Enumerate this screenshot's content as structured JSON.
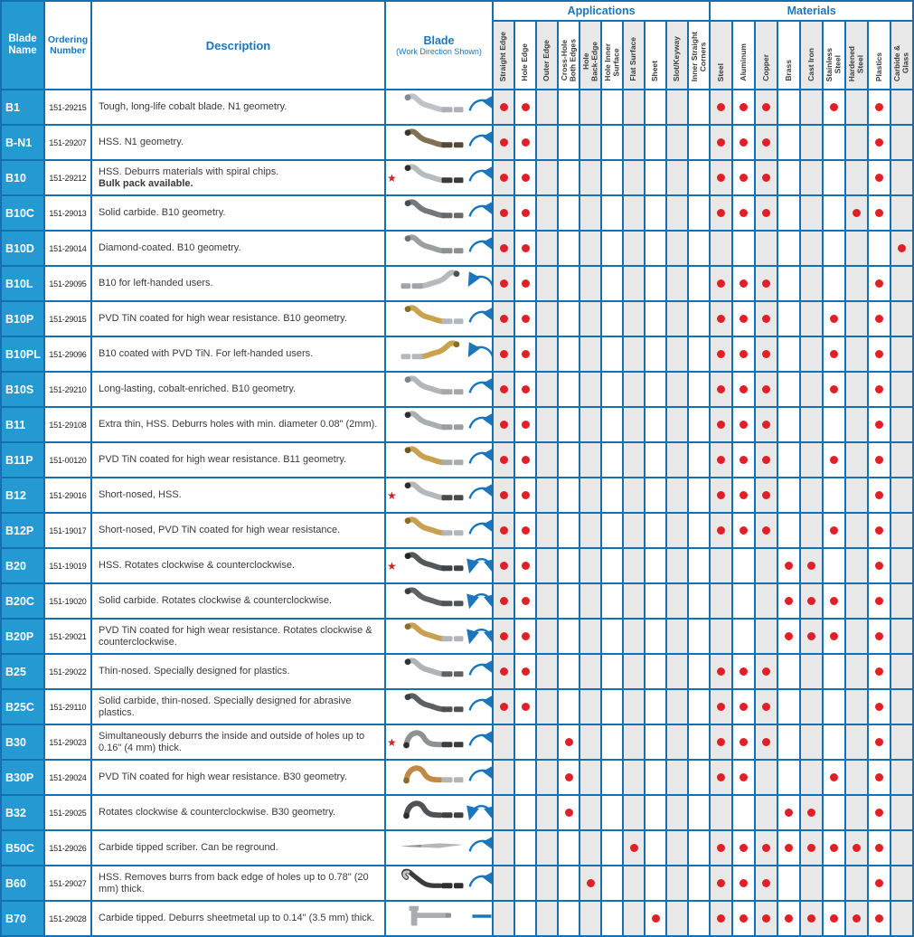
{
  "table": {
    "colors": {
      "accent_blue": "#1b76bb",
      "grid_blue": "#1470b2",
      "blade_name_cell_blue": "#2599d2",
      "dot_red": "#e01f26",
      "star_red": "#d42027",
      "shaded_column": "#e8e8e8"
    },
    "headers": {
      "blade_name": "Blade\nName",
      "ordering_number": "Ordering\nNumber",
      "description": "Description",
      "blade": "Blade",
      "blade_sub": "(Work Direction Shown)",
      "applications_group": "Applications",
      "materials_group": "Materials",
      "applications": [
        "Straight Edge",
        "Hole Edge",
        "Outer Edge",
        "Cross-Hole\nBoth Edges",
        "Hole\nBack-Edge",
        "Hole Inner\nSurface",
        "Flat Surface",
        "Sheet",
        "Slot/Keyway",
        "Inner Straight\nCorners"
      ],
      "materials": [
        "Steel",
        "Aluminum",
        "Copper",
        "Brass",
        "Cast Iron",
        "Stainless\nSteel",
        "Hardened\nSteel",
        "Plastics",
        "Carbide &\nGlass"
      ]
    },
    "rows": [
      {
        "name": "B1",
        "order": "151-29215",
        "desc": "Tough, long-life cobalt blade. N1 geometry.",
        "bold_note": "",
        "star": false,
        "arrow": "cw",
        "blade": {
          "shape": "s",
          "body": "#bfc3c7",
          "tip": "#86898d",
          "shank": "#adb1b5"
        },
        "apps": [
          1,
          1,
          0,
          0,
          0,
          0,
          0,
          0,
          0,
          0
        ],
        "mats": [
          1,
          1,
          1,
          0,
          0,
          1,
          0,
          1,
          0
        ]
      },
      {
        "name": "B-N1",
        "order": "151-29207",
        "desc": "HSS. N1 geometry.",
        "bold_note": "",
        "star": false,
        "arrow": "cw",
        "blade": {
          "shape": "s",
          "body": "#836f54",
          "tip": "#3c352b",
          "shank": "#55493a"
        },
        "apps": [
          1,
          1,
          0,
          0,
          0,
          0,
          0,
          0,
          0,
          0
        ],
        "mats": [
          1,
          1,
          1,
          0,
          0,
          0,
          0,
          1,
          0
        ]
      },
      {
        "name": "B10",
        "order": "151-29212",
        "desc": "HSS. Deburrs materials with spiral chips.",
        "bold_note": "Bulk pack available.",
        "star": true,
        "arrow": "cw",
        "blade": {
          "shape": "s",
          "body": "#b6bbbf",
          "tip": "#2c2c2c",
          "shank": "#3a3a3a"
        },
        "apps": [
          1,
          1,
          0,
          0,
          0,
          0,
          0,
          0,
          0,
          0
        ],
        "mats": [
          1,
          1,
          1,
          0,
          0,
          0,
          0,
          1,
          0
        ]
      },
      {
        "name": "B10C",
        "order": "151-29013",
        "desc": "Solid carbide. B10 geometry.",
        "bold_note": "",
        "star": false,
        "arrow": "cw",
        "blade": {
          "shape": "s",
          "body": "#74787b",
          "tip": "#4b4e51",
          "shank": "#67696c"
        },
        "apps": [
          1,
          1,
          0,
          0,
          0,
          0,
          0,
          0,
          0,
          0
        ],
        "mats": [
          1,
          1,
          1,
          0,
          0,
          0,
          1,
          1,
          0
        ]
      },
      {
        "name": "B10D",
        "order": "151-29014",
        "desc": "Diamond-coated. B10 geometry.",
        "bold_note": "",
        "star": false,
        "arrow": "cw",
        "blade": {
          "shape": "s",
          "body": "#9b9fa2",
          "tip": "#6e7173",
          "shank": "#8c9093"
        },
        "apps": [
          1,
          1,
          0,
          0,
          0,
          0,
          0,
          0,
          0,
          0
        ],
        "mats": [
          0,
          0,
          0,
          0,
          0,
          0,
          0,
          0,
          1
        ]
      },
      {
        "name": "B10L",
        "order": "151-29095",
        "desc": "B10 for left-handed users.",
        "bold_note": "",
        "star": false,
        "arrow": "ccw",
        "blade": {
          "shape": "s_l",
          "body": "#b6babd",
          "tip": "#4e5153",
          "shank": "#a0a4a7"
        },
        "apps": [
          1,
          1,
          0,
          0,
          0,
          0,
          0,
          0,
          0,
          0
        ],
        "mats": [
          1,
          1,
          1,
          0,
          0,
          0,
          0,
          1,
          0
        ]
      },
      {
        "name": "B10P",
        "order": "151-29015",
        "desc": "PVD TiN coated for high wear resistance. B10 geometry.",
        "bold_note": "",
        "star": false,
        "arrow": "cw",
        "blade": {
          "shape": "s",
          "body": "#c9a24e",
          "tip": "#8a6c2a",
          "shank": "#b4b8bb"
        },
        "apps": [
          1,
          1,
          0,
          0,
          0,
          0,
          0,
          0,
          0,
          0
        ],
        "mats": [
          1,
          1,
          1,
          0,
          0,
          1,
          0,
          1,
          0
        ]
      },
      {
        "name": "B10PL",
        "order": "151-29096",
        "desc": "B10 coated with PVD TiN. For left-handed users.",
        "bold_note": "",
        "star": false,
        "arrow": "ccw",
        "blade": {
          "shape": "s_l",
          "body": "#c9a24e",
          "tip": "#8a6c2a",
          "shank": "#b4b8bb"
        },
        "apps": [
          1,
          1,
          0,
          0,
          0,
          0,
          0,
          0,
          0,
          0
        ],
        "mats": [
          1,
          1,
          1,
          0,
          0,
          1,
          0,
          1,
          0
        ]
      },
      {
        "name": "B10S",
        "order": "151-29210",
        "desc": "Long-lasting, cobalt-enriched. B10 geometry.",
        "bold_note": "",
        "star": false,
        "arrow": "cw",
        "blade": {
          "shape": "s",
          "body": "#b2b6b9",
          "tip": "#7f8386",
          "shank": "#a4a8ab"
        },
        "apps": [
          1,
          1,
          0,
          0,
          0,
          0,
          0,
          0,
          0,
          0
        ],
        "mats": [
          1,
          1,
          1,
          0,
          0,
          1,
          0,
          1,
          0
        ]
      },
      {
        "name": "B11",
        "order": "151-29108",
        "desc": "Extra thin, HSS. Deburrs holes with min. diameter 0.08\" (2mm).",
        "bold_note": "",
        "star": false,
        "arrow": "cw",
        "blade": {
          "shape": "s",
          "body": "#a9aeb1",
          "tip": "#2f2f2f",
          "shank": "#9a9ea1"
        },
        "apps": [
          1,
          1,
          0,
          0,
          0,
          0,
          0,
          0,
          0,
          0
        ],
        "mats": [
          1,
          1,
          1,
          0,
          0,
          0,
          0,
          1,
          0
        ]
      },
      {
        "name": "B11P",
        "order": "151-00120",
        "desc": "PVD TiN coated for high wear resistance. B11 geometry.",
        "bold_note": "",
        "star": false,
        "arrow": "cw",
        "blade": {
          "shape": "s",
          "body": "#c8a050",
          "tip": "#6b5522",
          "shank": "#a8acaf"
        },
        "apps": [
          1,
          1,
          0,
          0,
          0,
          0,
          0,
          0,
          0,
          0
        ],
        "mats": [
          1,
          1,
          1,
          0,
          0,
          1,
          0,
          1,
          0
        ]
      },
      {
        "name": "B12",
        "order": "151-29016",
        "desc": "Short-nosed, HSS.",
        "bold_note": "",
        "star": true,
        "arrow": "cw",
        "blade": {
          "shape": "s",
          "body": "#b4b8bb",
          "tip": "#2d2d2d",
          "shank": "#4a4a4a"
        },
        "apps": [
          1,
          1,
          0,
          0,
          0,
          0,
          0,
          0,
          0,
          0
        ],
        "mats": [
          1,
          1,
          1,
          0,
          0,
          0,
          0,
          1,
          0
        ]
      },
      {
        "name": "B12P",
        "order": "151-19017",
        "desc": "Short-nosed, PVD TiN coated for high wear resistance.",
        "bold_note": "",
        "star": false,
        "arrow": "cw",
        "blade": {
          "shape": "s",
          "body": "#c8a050",
          "tip": "#8a6c2a",
          "shank": "#b2b6b9"
        },
        "apps": [
          1,
          1,
          0,
          0,
          0,
          0,
          0,
          0,
          0,
          0
        ],
        "mats": [
          1,
          1,
          1,
          0,
          0,
          1,
          0,
          1,
          0
        ]
      },
      {
        "name": "B20",
        "order": "151-19019",
        "desc": "HSS. Rotates clockwise & counterclockwise.",
        "bold_note": "",
        "star": true,
        "arrow": "both",
        "blade": {
          "shape": "s",
          "body": "#55585b",
          "tip": "#222222",
          "shank": "#404346"
        },
        "apps": [
          1,
          1,
          0,
          0,
          0,
          0,
          0,
          0,
          0,
          0
        ],
        "mats": [
          0,
          0,
          0,
          1,
          1,
          0,
          0,
          1,
          0
        ]
      },
      {
        "name": "B20C",
        "order": "151-19020",
        "desc": "Solid carbide. Rotates clockwise & counterclockwise.",
        "bold_note": "",
        "star": false,
        "arrow": "both",
        "blade": {
          "shape": "s",
          "body": "#606366",
          "tip": "#3c3f41",
          "shank": "#525558"
        },
        "apps": [
          1,
          1,
          0,
          0,
          0,
          0,
          0,
          0,
          0,
          0
        ],
        "mats": [
          0,
          0,
          0,
          1,
          1,
          1,
          0,
          1,
          0
        ]
      },
      {
        "name": "B20P",
        "order": "151-29021",
        "desc": "PVD TiN coated for high wear resistance. Rotates clockwise & counterclockwise.",
        "bold_note": "",
        "star": false,
        "arrow": "both",
        "blade": {
          "shape": "s",
          "body": "#c8a050",
          "tip": "#8a6c2a",
          "shank": "#b2b6b9"
        },
        "apps": [
          1,
          1,
          0,
          0,
          0,
          0,
          0,
          0,
          0,
          0
        ],
        "mats": [
          0,
          0,
          0,
          1,
          1,
          1,
          0,
          1,
          0
        ]
      },
      {
        "name": "B25",
        "order": "151-29022",
        "desc": "Thin-nosed. Specially designed for plastics.",
        "bold_note": "",
        "star": false,
        "arrow": "cw",
        "blade": {
          "shape": "s",
          "body": "#afb3b6",
          "tip": "#333333",
          "shank": "#606366"
        },
        "apps": [
          1,
          1,
          0,
          0,
          0,
          0,
          0,
          0,
          0,
          0
        ],
        "mats": [
          1,
          1,
          1,
          0,
          0,
          0,
          0,
          1,
          0
        ]
      },
      {
        "name": "B25C",
        "order": "151-29110",
        "desc": "Solid carbide, thin-nosed. Specially designed for abrasive plastics.",
        "bold_note": "",
        "star": false,
        "arrow": "cw",
        "blade": {
          "shape": "s",
          "body": "#5d6063",
          "tip": "#3a3d3f",
          "shank": "#4e5154"
        },
        "apps": [
          1,
          1,
          0,
          0,
          0,
          0,
          0,
          0,
          0,
          0
        ],
        "mats": [
          1,
          1,
          1,
          0,
          0,
          0,
          0,
          1,
          0
        ]
      },
      {
        "name": "B30",
        "order": "151-29023",
        "desc": "Simultaneously deburrs the inside and outside of holes up to 0.16\" (4 mm) thick.",
        "bold_note": "",
        "star": true,
        "arrow": "cw",
        "blade": {
          "shape": "hump",
          "body": "#8e9295",
          "tip": "#2e2e2e",
          "shank": "#3c3c3c"
        },
        "apps": [
          0,
          0,
          0,
          1,
          0,
          0,
          0,
          0,
          0,
          0
        ],
        "mats": [
          1,
          1,
          1,
          0,
          0,
          0,
          0,
          1,
          0
        ]
      },
      {
        "name": "B30P",
        "order": "151-29024",
        "desc": "PVD TiN coated for high wear resistance. B30 geometry.",
        "bold_note": "",
        "star": false,
        "arrow": "cw",
        "blade": {
          "shape": "hump",
          "body": "#c08a45",
          "tip": "#8a6c2a",
          "shank": "#b2b6b9"
        },
        "apps": [
          0,
          0,
          0,
          1,
          0,
          0,
          0,
          0,
          0,
          0
        ],
        "mats": [
          1,
          1,
          0,
          0,
          0,
          1,
          0,
          1,
          0
        ]
      },
      {
        "name": "B32",
        "order": "151-29025",
        "desc": "Rotates clockwise & counterclockwise. B30 geometry.",
        "bold_note": "",
        "star": false,
        "arrow": "both",
        "blade": {
          "shape": "hump",
          "body": "#505356",
          "tip": "#2c2c2c",
          "shank": "#3e4144"
        },
        "apps": [
          0,
          0,
          0,
          1,
          0,
          0,
          0,
          0,
          0,
          0
        ],
        "mats": [
          0,
          0,
          0,
          1,
          1,
          0,
          0,
          1,
          0
        ]
      },
      {
        "name": "B50C",
        "order": "151-29026",
        "desc": "Carbide tipped scriber. Can be reground.",
        "bold_note": "",
        "star": false,
        "arrow": "cw",
        "blade": {
          "shape": "straight",
          "body": "#b3b7ba",
          "tip": "#8f9396",
          "shank": "#b3b7ba"
        },
        "apps": [
          0,
          0,
          0,
          0,
          0,
          0,
          1,
          0,
          0,
          0
        ],
        "mats": [
          1,
          1,
          1,
          1,
          1,
          1,
          1,
          1,
          0
        ]
      },
      {
        "name": "B60",
        "order": "151-29027",
        "desc": "HSS. Removes burrs from back edge of holes up to 0.78\" (20 mm) thick.",
        "bold_note": "",
        "star": false,
        "arrow": "cw",
        "blade": {
          "shape": "hook",
          "body": "#3b3b3b",
          "tip": "#c3c7ca",
          "shank": "#2f2f2f"
        },
        "apps": [
          0,
          0,
          0,
          0,
          1,
          0,
          0,
          0,
          0,
          0
        ],
        "mats": [
          1,
          1,
          1,
          0,
          0,
          0,
          0,
          1,
          0
        ]
      },
      {
        "name": "B70",
        "order": "151-29028",
        "desc": "Carbide tipped. Deburrs sheetmetal up to 0.14\" (3.5 mm) thick.",
        "bold_note": "",
        "star": false,
        "arrow": "dash",
        "blade": {
          "shape": "tshape",
          "body": "#a8acaf",
          "tip": "#8f9396",
          "shank": "#a8acaf"
        },
        "apps": [
          0,
          0,
          0,
          0,
          0,
          0,
          0,
          1,
          0,
          0
        ],
        "mats": [
          1,
          1,
          1,
          1,
          1,
          1,
          1,
          1,
          0
        ]
      }
    ]
  }
}
